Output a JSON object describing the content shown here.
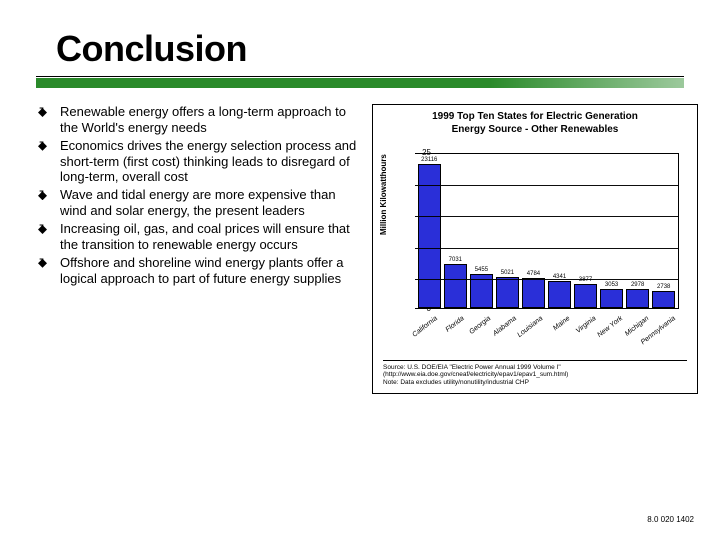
{
  "title": "Conclusion",
  "divider_color": "#2a8a2a",
  "bullets": [
    "Renewable energy offers a long-term approach to the World's energy needs",
    "Economics drives the energy selection process and short-term (first cost) thinking leads to disregard of long-term, overall cost",
    "Wave and tidal energy are more expensive than wind and solar energy, the present leaders",
    "Increasing oil, gas, and coal prices will ensure that the transition to renewable energy occurs",
    "Offshore and shoreline wind energy plants offer a logical approach to part of future energy supplies"
  ],
  "chart": {
    "type": "bar",
    "title_line1": "1999 Top Ten States for Electric Generation",
    "title_line2": "Energy Source - Other Renewables",
    "ylabel": "Million Kilowatthours",
    "ylim": [
      0,
      25
    ],
    "yticks": [
      0,
      5,
      10,
      15,
      20,
      25
    ],
    "bar_color": "#2a2fd8",
    "border_color": "#000000",
    "background": "#ffffff",
    "categories": [
      "California",
      "Florida",
      "Georgia",
      "Alabama",
      "Louisiana",
      "Maine",
      "Virginia",
      "New York",
      "Michigan",
      "Pennsylvania"
    ],
    "values": [
      23116,
      7031,
      5455,
      5021,
      4784,
      4341,
      3877,
      3053,
      2978,
      2738
    ],
    "display_max": 25000,
    "source_line1": "Source: U.S. DOE/EIA \"Electric Power Annual 1999 Volume I\"",
    "source_line2": "(http://www.eia.doe.gov/cneaf/electricity/epav1/epav1_sum.html)",
    "source_line3": "Note: Data excludes utility/nonutility/industrial CHP"
  },
  "footer": "8.0 020 1402"
}
